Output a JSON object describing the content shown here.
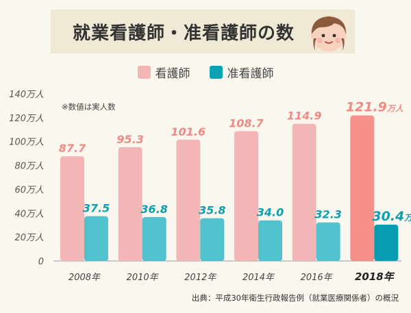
{
  "header": {
    "title": "就業看護師・准看護師の数",
    "icon": "nurse-face-icon"
  },
  "note": "※数値は実人数",
  "colors": {
    "title_band": "#efe9d5",
    "nurse": "#f2b6b6",
    "nurse_highlight": "#f59189",
    "assistant": "#52c2cf",
    "assistant_highlight": "#079caf",
    "nurse_label": "#f08a84",
    "assistant_label": "#0e9eb0"
  },
  "chart_data": {
    "type": "bar",
    "categories": [
      "2008年",
      "2010年",
      "2012年",
      "2014年",
      "2016年",
      "2018年"
    ],
    "series": [
      {
        "name": "看護師",
        "values": [
          87.7,
          95.3,
          101.6,
          108.7,
          114.9,
          121.9
        ]
      },
      {
        "name": "准看護師",
        "values": [
          37.5,
          36.8,
          35.8,
          34.0,
          32.3,
          30.4
        ]
      }
    ],
    "value_suffix_last": "万人",
    "yticks": [
      "0",
      "20万人",
      "40万人",
      "60万人",
      "80万人",
      "100万人",
      "120万人",
      "140万人"
    ],
    "ylim": [
      0,
      140
    ],
    "highlight_category": "2018年",
    "legend_position": "top-center",
    "grid": false
  },
  "footer": {
    "source": "出典：平成30年衛生行政報告例（就業医療関係者）の概況"
  }
}
